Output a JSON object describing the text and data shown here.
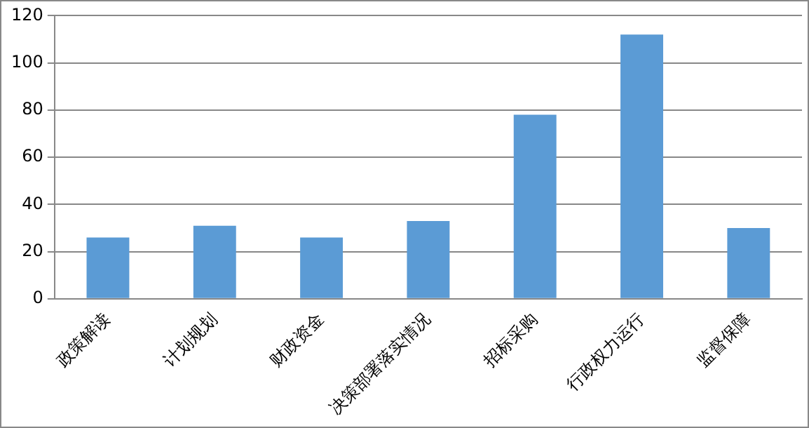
{
  "chart_data": {
    "type": "bar",
    "categories": [
      "政策解读",
      "计划规划",
      "财政资金",
      "决策部署落实情况",
      "招标采购",
      "行政权力运行",
      "监督保障"
    ],
    "values": [
      26,
      31,
      26,
      33,
      78,
      112,
      30
    ],
    "color": "#5b9bd5",
    "ylim": [
      0,
      120
    ],
    "yticks": [
      0,
      20,
      40,
      60,
      80,
      100,
      120
    ],
    "grid": "y"
  }
}
